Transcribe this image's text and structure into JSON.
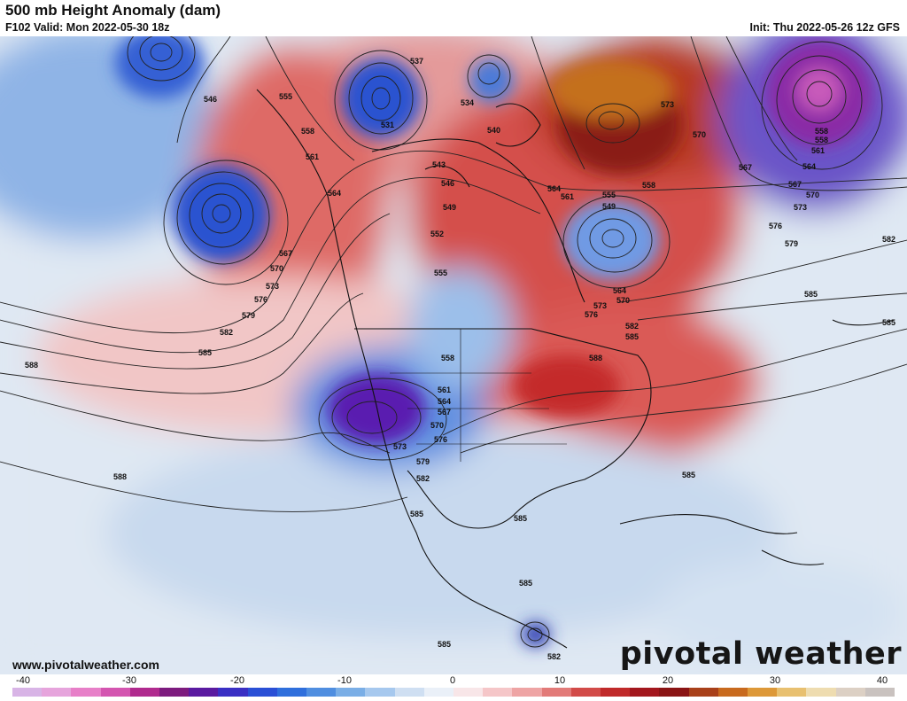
{
  "header": {
    "title": "500 mb Height Anomaly (dam)",
    "valid": "F102 Valid: Mon 2022-05-30 18z",
    "init": "Init: Thu 2022-05-26 12z GFS"
  },
  "footer": {
    "url": "www.pivotalweather.com",
    "brand": "pivotal weather"
  },
  "colorbar": {
    "ticks": [
      "-40",
      "-30",
      "-20",
      "-10",
      "0",
      "10",
      "20",
      "30",
      "40"
    ],
    "colors": [
      "#d8b4e6",
      "#e6a4dc",
      "#e77fc8",
      "#d455b0",
      "#b02a8e",
      "#7d1b7e",
      "#5a1aa0",
      "#3a2fc4",
      "#2a4fd6",
      "#2f6fdc",
      "#4f8ee0",
      "#7aaee6",
      "#a6c8ee",
      "#cfdff2",
      "#eaf0f8",
      "#f8e6e8",
      "#f5c6c8",
      "#eea4a4",
      "#e27a78",
      "#d24b48",
      "#c02a2a",
      "#a3171d",
      "#8a1414",
      "#a8401a",
      "#c86a1e",
      "#dd9838",
      "#e8c070",
      "#eedcb0",
      "#dcd0c4",
      "#c9c2bf"
    ]
  },
  "map": {
    "contour_labels": [
      "546",
      "555",
      "558",
      "561",
      "564",
      "567",
      "570",
      "573",
      "576",
      "579",
      "582",
      "585",
      "588",
      "537",
      "531",
      "534",
      "540",
      "543",
      "546",
      "549",
      "552",
      "555",
      "573",
      "570",
      "567",
      "564",
      "561",
      "558",
      "555",
      "549",
      "564",
      "570",
      "573",
      "576",
      "582",
      "585",
      "588",
      "558",
      "561",
      "564",
      "567",
      "570",
      "573",
      "576",
      "579",
      "582",
      "585",
      "585",
      "585",
      "585",
      "582",
      "585",
      "585",
      "558",
      "558",
      "561",
      "564",
      "567",
      "570",
      "573",
      "576",
      "579",
      "582",
      "585",
      "588"
    ],
    "colors": {
      "neg_strong": "#5a1aa0",
      "neg": "#2f6fdc",
      "neg_light": "#a6c8ee",
      "pos_light": "#f5c6c8",
      "pos": "#d24b48",
      "pos_strong": "#8a1414",
      "pos_orange": "#c86a1e"
    }
  }
}
